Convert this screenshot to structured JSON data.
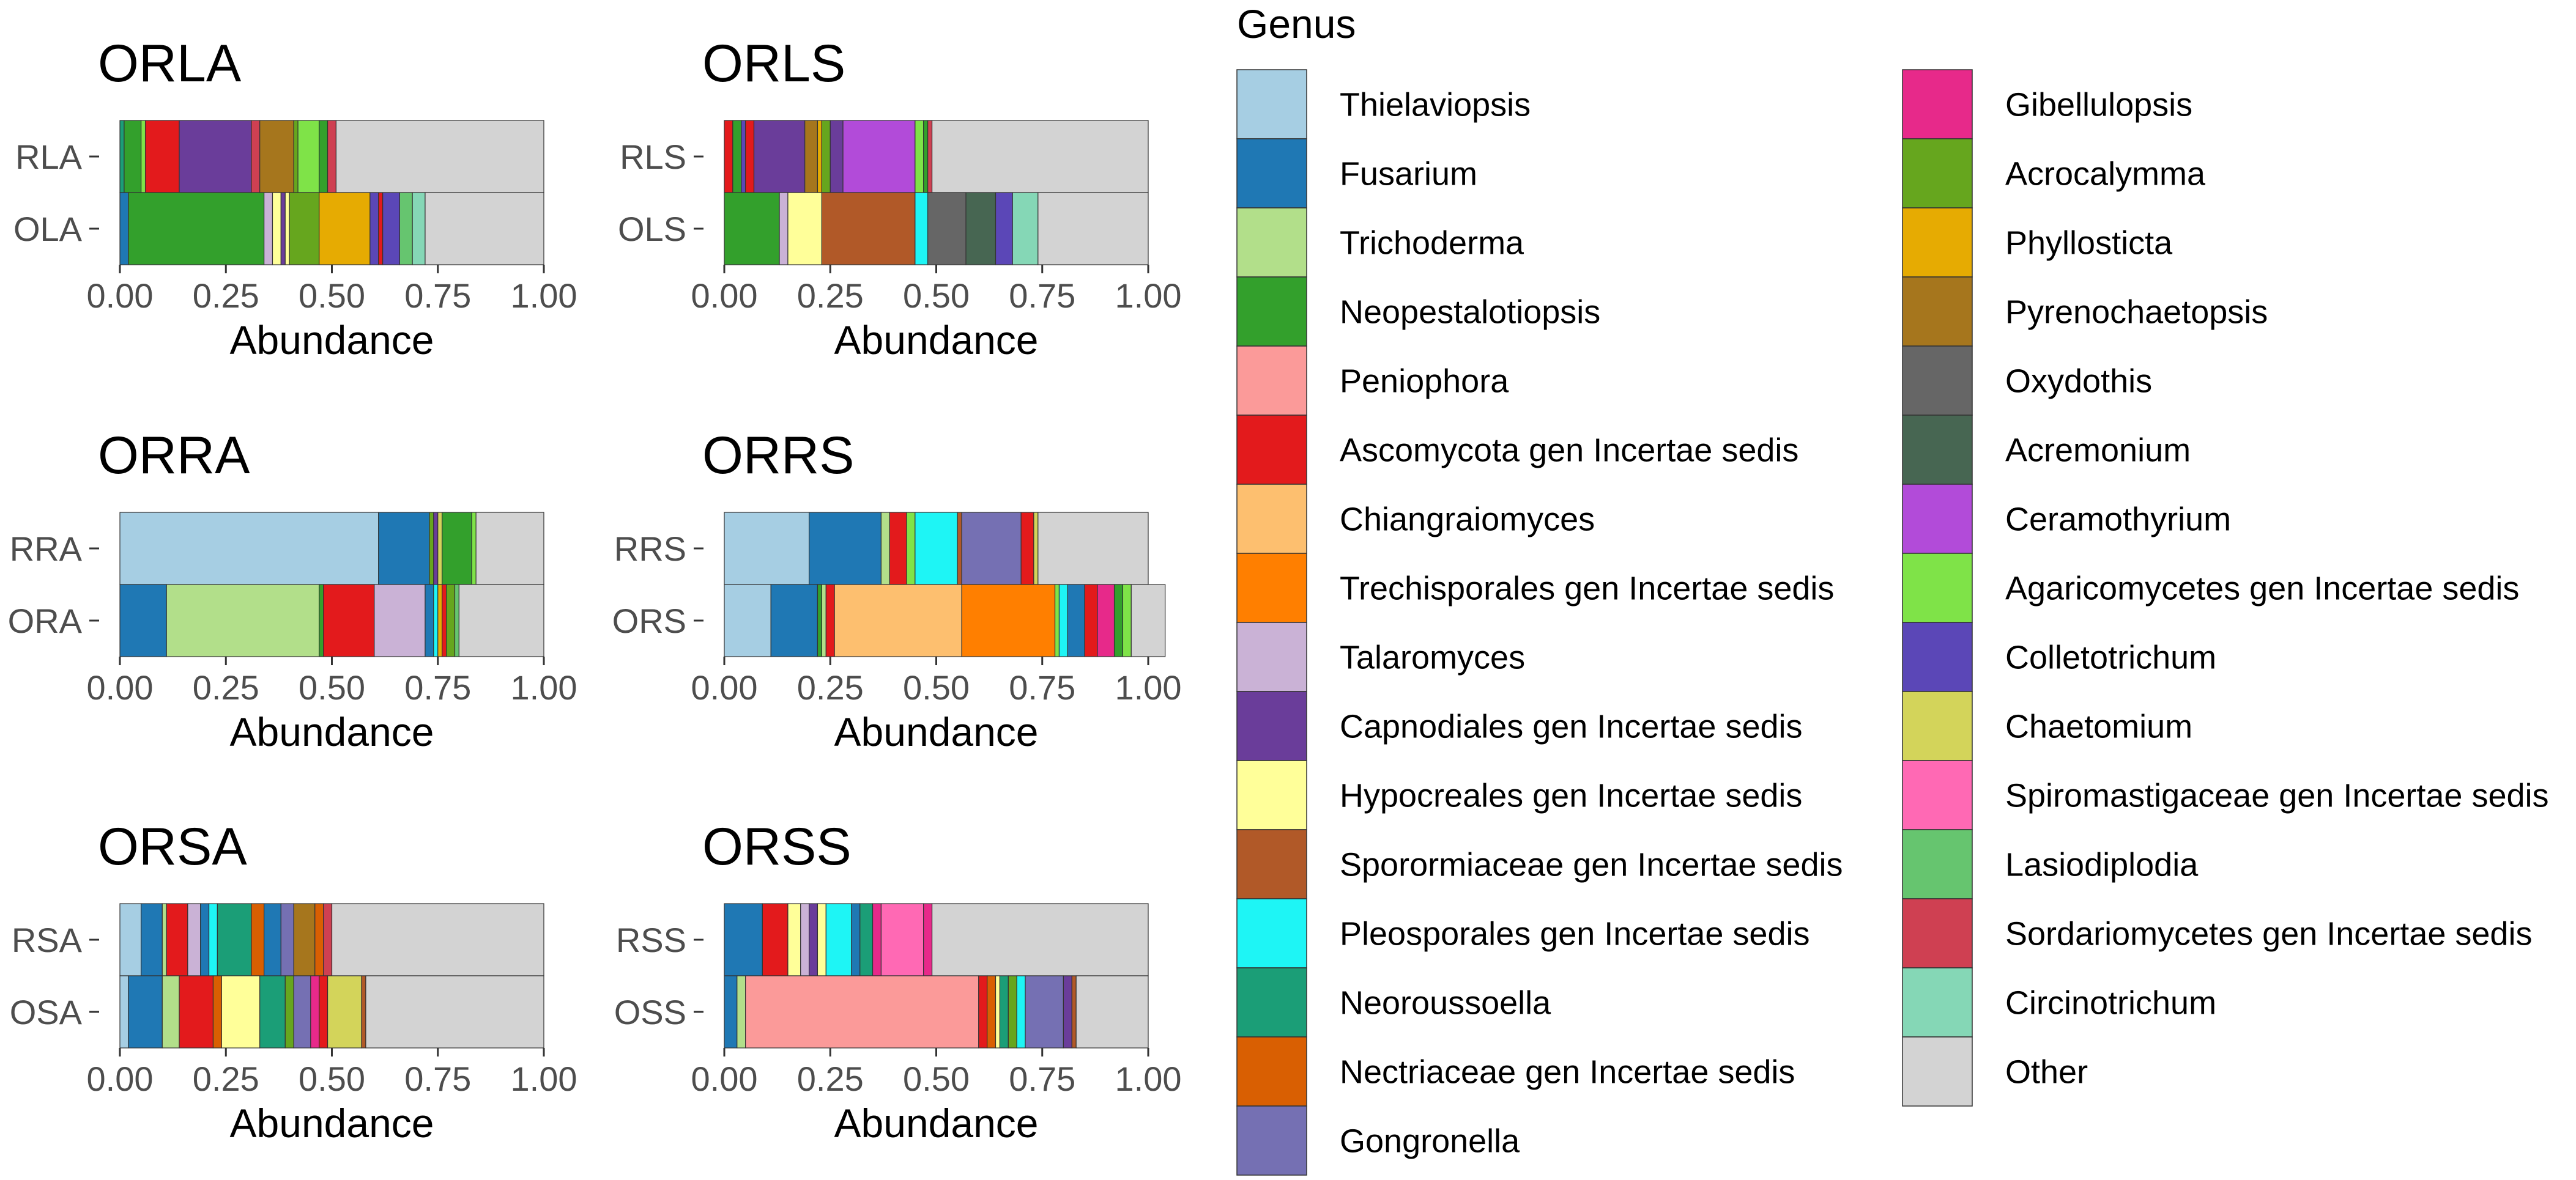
{
  "chart_data": {
    "type": "bar",
    "orientation": "horizontal",
    "stacked": true,
    "xlabel": "Abundance",
    "xlim": [
      0,
      1
    ],
    "xticks": [
      "0.00",
      "0.25",
      "0.50",
      "0.75",
      "1.00"
    ],
    "legend": {
      "title": "Genus",
      "position": "right",
      "entries": [
        {
          "name": "Thielaviopsis",
          "color": "#a6cee3"
        },
        {
          "name": "Fusarium",
          "color": "#1f78b4"
        },
        {
          "name": "Trichoderma",
          "color": "#b2df8a"
        },
        {
          "name": "Neopestalotiopsis",
          "color": "#33a02c"
        },
        {
          "name": "Peniophora",
          "color": "#fb9a99"
        },
        {
          "name": "Ascomycota gen Incertae sedis",
          "color": "#e31a1c"
        },
        {
          "name": "Chiangraiomyces",
          "color": "#fdbf6f"
        },
        {
          "name": "Trechisporales gen Incertae sedis",
          "color": "#ff7f00"
        },
        {
          "name": "Talaromyces",
          "color": "#cab2d6"
        },
        {
          "name": "Capnodiales gen Incertae sedis",
          "color": "#6a3d9a"
        },
        {
          "name": "Hypocreales gen Incertae sedis",
          "color": "#ffff99"
        },
        {
          "name": "Sporormiaceae gen Incertae sedis",
          "color": "#b15928"
        },
        {
          "name": "Pleosporales gen Incertae sedis",
          "color": "#1ef5f5"
        },
        {
          "name": "Neoroussoella",
          "color": "#1b9e77"
        },
        {
          "name": "Nectriaceae gen Incertae sedis",
          "color": "#d95f02"
        },
        {
          "name": "Gongronella",
          "color": "#7570b3"
        },
        {
          "name": "Gibellulopsis",
          "color": "#e7298a"
        },
        {
          "name": "Acrocalymma",
          "color": "#66a61e"
        },
        {
          "name": "Phyllosticta",
          "color": "#e6ab02"
        },
        {
          "name": "Pyrenochaetopsis",
          "color": "#a6761d"
        },
        {
          "name": "Oxydothis",
          "color": "#666666"
        },
        {
          "name": "Acremonium",
          "color": "#476652"
        },
        {
          "name": "Ceramothyrium",
          "color": "#b24bd9"
        },
        {
          "name": "Agaricomycetes gen Incertae sedis",
          "color": "#7fe348"
        },
        {
          "name": "Colletotrichum",
          "color": "#5b47b7"
        },
        {
          "name": "Chaetomium",
          "color": "#d3d45a"
        },
        {
          "name": "Spiromastigaceae gen Incertae sedis",
          "color": "#ff69b4"
        },
        {
          "name": "Lasiodiplodia",
          "color": "#66c56f"
        },
        {
          "name": "Sordariomycetes gen Incertae sedis",
          "color": "#cf4052"
        },
        {
          "name": "Circinotrichum",
          "color": "#85d7b6"
        },
        {
          "name": "Other",
          "color": "#d3d3d3"
        }
      ]
    },
    "panels": [
      {
        "title": "ORLA",
        "rows": [
          {
            "label": "RLA",
            "segments": [
              [
                "Neoroussoella",
                0.01
              ],
              [
                "Neopestalotiopsis",
                0.04
              ],
              [
                "Agaricomycetes gen Incertae sedis",
                0.01
              ],
              [
                "Ascomycota gen Incertae sedis",
                0.08
              ],
              [
                "Capnodiales gen Incertae sedis",
                0.17
              ],
              [
                "Sordariomycetes gen Incertae sedis",
                0.02
              ],
              [
                "Pyrenochaetopsis",
                0.08
              ],
              [
                "Acrocalymma",
                0.01
              ],
              [
                "Agaricomycetes gen Incertae sedis",
                0.05
              ],
              [
                "Neopestalotiopsis",
                0.02
              ],
              [
                "Sordariomycetes gen Incertae sedis",
                0.02
              ],
              [
                "Other",
                0.49
              ]
            ]
          },
          {
            "label": "OLA",
            "segments": [
              [
                "Fusarium",
                0.02
              ],
              [
                "Neopestalotiopsis",
                0.32
              ],
              [
                "Talaromyces",
                0.02
              ],
              [
                "Hypocreales gen Incertae sedis",
                0.02
              ],
              [
                "Capnodiales gen Incertae sedis",
                0.01
              ],
              [
                "Hypocreales gen Incertae sedis",
                0.01
              ],
              [
                "Acrocalymma",
                0.07
              ],
              [
                "Phyllosticta",
                0.12
              ],
              [
                "Colletotrichum",
                0.02
              ],
              [
                "Ascomycota gen Incertae sedis",
                0.01
              ],
              [
                "Colletotrichum",
                0.04
              ],
              [
                "Lasiodiplodia",
                0.03
              ],
              [
                "Circinotrichum",
                0.03
              ],
              [
                "Other",
                0.28
              ]
            ]
          }
        ]
      },
      {
        "title": "ORLS",
        "rows": [
          {
            "label": "RLS",
            "segments": [
              [
                "Ascomycota gen Incertae sedis",
                0.02
              ],
              [
                "Neopestalotiopsis",
                0.02
              ],
              [
                "Colletotrichum",
                0.01
              ],
              [
                "Ascomycota gen Incertae sedis",
                0.02
              ],
              [
                "Capnodiales gen Incertae sedis",
                0.12
              ],
              [
                "Pyrenochaetopsis",
                0.03
              ],
              [
                "Phyllosticta",
                0.01
              ],
              [
                "Acrocalymma",
                0.02
              ],
              [
                "Capnodiales gen Incertae sedis",
                0.03
              ],
              [
                "Ceramothyrium",
                0.17
              ],
              [
                "Agaricomycetes gen Incertae sedis",
                0.02
              ],
              [
                "Neopestalotiopsis",
                0.01
              ],
              [
                "Sordariomycetes gen Incertae sedis",
                0.01
              ],
              [
                "Other",
                0.51
              ]
            ]
          },
          {
            "label": "OLS",
            "segments": [
              [
                "Neopestalotiopsis",
                0.13
              ],
              [
                "Talaromyces",
                0.02
              ],
              [
                "Hypocreales gen Incertae sedis",
                0.08
              ],
              [
                "Sporormiaceae gen Incertae sedis",
                0.22
              ],
              [
                "Pleosporales gen Incertae sedis",
                0.03
              ],
              [
                "Oxydothis",
                0.09
              ],
              [
                "Acremonium",
                0.07
              ],
              [
                "Colletotrichum",
                0.04
              ],
              [
                "Circinotrichum",
                0.06
              ],
              [
                "Other",
                0.26
              ]
            ]
          }
        ]
      },
      {
        "title": "ORRA",
        "rows": [
          {
            "label": "RRA",
            "segments": [
              [
                "Thielaviopsis",
                0.61
              ],
              [
                "Fusarium",
                0.12
              ],
              [
                "Acrocalymma",
                0.01
              ],
              [
                "Capnodiales gen Incertae sedis",
                0.01
              ],
              [
                "Chaetomium",
                0.01
              ],
              [
                "Neopestalotiopsis",
                0.07
              ],
              [
                "Agaricomycetes gen Incertae sedis",
                0.01
              ],
              [
                "Other",
                0.16
              ]
            ]
          },
          {
            "label": "ORA",
            "segments": [
              [
                "Fusarium",
                0.11
              ],
              [
                "Trichoderma",
                0.36
              ],
              [
                "Neopestalotiopsis",
                0.01
              ],
              [
                "Ascomycota gen Incertae sedis",
                0.12
              ],
              [
                "Talaromyces",
                0.12
              ],
              [
                "Fusarium",
                0.02
              ],
              [
                "Pleosporales gen Incertae sedis",
                0.01
              ],
              [
                "Phyllosticta",
                0.01
              ],
              [
                "Ascomycota gen Incertae sedis",
                0.01
              ],
              [
                "Acrocalymma",
                0.02
              ],
              [
                "Lasiodiplodia",
                0.01
              ],
              [
                "Other",
                0.2
              ]
            ]
          }
        ]
      },
      {
        "title": "ORRS",
        "rows": [
          {
            "label": "RRS",
            "segments": [
              [
                "Thielaviopsis",
                0.2
              ],
              [
                "Fusarium",
                0.17
              ],
              [
                "Trichoderma",
                0.02
              ],
              [
                "Ascomycota gen Incertae sedis",
                0.04
              ],
              [
                "Agaricomycetes gen Incertae sedis",
                0.02
              ],
              [
                "Pleosporales gen Incertae sedis",
                0.1
              ],
              [
                "Sporormiaceae gen Incertae sedis",
                0.01
              ],
              [
                "Gongronella",
                0.14
              ],
              [
                "Ascomycota gen Incertae sedis",
                0.03
              ],
              [
                "Chaetomium",
                0.01
              ],
              [
                "Other",
                0.26
              ]
            ]
          },
          {
            "label": "ORS",
            "segments": [
              [
                "Thielaviopsis",
                0.11
              ],
              [
                "Fusarium",
                0.11
              ],
              [
                "Neopestalotiopsis",
                0.01
              ],
              [
                "Trichoderma",
                0.01
              ],
              [
                "Ascomycota gen Incertae sedis",
                0.02
              ],
              [
                "Chiangraiomyces",
                0.3
              ],
              [
                "Trechisporales gen Incertae sedis",
                0.22
              ],
              [
                "Agaricomycetes gen Incertae sedis",
                0.01
              ],
              [
                "Pleosporales gen Incertae sedis",
                0.02
              ],
              [
                "Fusarium",
                0.04
              ],
              [
                "Ascomycota gen Incertae sedis",
                0.03
              ],
              [
                "Gibellulopsis",
                0.04
              ],
              [
                "Neopestalotiopsis",
                0.02
              ],
              [
                "Agaricomycetes gen Incertae sedis",
                0.02
              ],
              [
                "Other",
                0.08
              ]
            ]
          }
        ]
      },
      {
        "title": "ORSA",
        "rows": [
          {
            "label": "RSA",
            "segments": [
              [
                "Thielaviopsis",
                0.05
              ],
              [
                "Fusarium",
                0.05
              ],
              [
                "Trichoderma",
                0.01
              ],
              [
                "Ascomycota gen Incertae sedis",
                0.05
              ],
              [
                "Talaromyces",
                0.03
              ],
              [
                "Fusarium",
                0.02
              ],
              [
                "Pleosporales gen Incertae sedis",
                0.02
              ],
              [
                "Neoroussoella",
                0.08
              ],
              [
                "Nectriaceae gen Incertae sedis",
                0.03
              ],
              [
                "Fusarium",
                0.04
              ],
              [
                "Gongronella",
                0.03
              ],
              [
                "Pyrenochaetopsis",
                0.05
              ],
              [
                "Nectriaceae gen Incertae sedis",
                0.02
              ],
              [
                "Sordariomycetes gen Incertae sedis",
                0.02
              ],
              [
                "Other",
                0.5
              ]
            ]
          },
          {
            "label": "OSA",
            "segments": [
              [
                "Thielaviopsis",
                0.02
              ],
              [
                "Fusarium",
                0.08
              ],
              [
                "Trichoderma",
                0.04
              ],
              [
                "Ascomycota gen Incertae sedis",
                0.08
              ],
              [
                "Nectriaceae gen Incertae sedis",
                0.02
              ],
              [
                "Hypocreales gen Incertae sedis",
                0.09
              ],
              [
                "Neoroussoella",
                0.06
              ],
              [
                "Acrocalymma",
                0.02
              ],
              [
                "Gongronella",
                0.04
              ],
              [
                "Gibellulopsis",
                0.02
              ],
              [
                "Ascomycota gen Incertae sedis",
                0.02
              ],
              [
                "Chaetomium",
                0.08
              ],
              [
                "Sporormiaceae gen Incertae sedis",
                0.01
              ],
              [
                "Other",
                0.42
              ]
            ]
          }
        ]
      },
      {
        "title": "ORSS",
        "rows": [
          {
            "label": "RSS",
            "segments": [
              [
                "Fusarium",
                0.09
              ],
              [
                "Ascomycota gen Incertae sedis",
                0.06
              ],
              [
                "Hypocreales gen Incertae sedis",
                0.03
              ],
              [
                "Talaromyces",
                0.02
              ],
              [
                "Capnodiales gen Incertae sedis",
                0.02
              ],
              [
                "Hypocreales gen Incertae sedis",
                0.02
              ],
              [
                "Pleosporales gen Incertae sedis",
                0.06
              ],
              [
                "Fusarium",
                0.02
              ],
              [
                "Neoroussoella",
                0.03
              ],
              [
                "Gibellulopsis",
                0.02
              ],
              [
                "Spiromastigaceae gen Incertae sedis",
                0.1
              ],
              [
                "Gibellulopsis",
                0.02
              ],
              [
                "Other",
                0.51
              ]
            ]
          },
          {
            "label": "OSS",
            "segments": [
              [
                "Fusarium",
                0.03
              ],
              [
                "Trichoderma",
                0.02
              ],
              [
                "Peniophora",
                0.55
              ],
              [
                "Ascomycota gen Incertae sedis",
                0.02
              ],
              [
                "Nectriaceae gen Incertae sedis",
                0.02
              ],
              [
                "Hypocreales gen Incertae sedis",
                0.01
              ],
              [
                "Neoroussoella",
                0.02
              ],
              [
                "Acrocalymma",
                0.02
              ],
              [
                "Pleosporales gen Incertae sedis",
                0.02
              ],
              [
                "Gongronella",
                0.09
              ],
              [
                "Capnodiales gen Incertae sedis",
                0.02
              ],
              [
                "Sporormiaceae gen Incertae sedis",
                0.01
              ],
              [
                "Other",
                0.17
              ]
            ]
          }
        ]
      }
    ]
  }
}
